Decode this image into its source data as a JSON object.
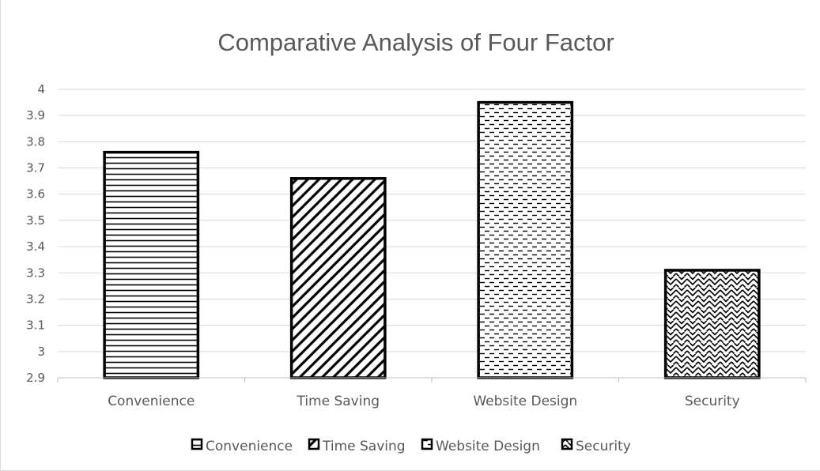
{
  "chart_data": {
    "type": "bar",
    "title": "Comparative Analysis of Four Factor",
    "categories": [
      "Convenience",
      "Time Saving",
      "Website Design",
      "Security"
    ],
    "values": [
      3.76,
      3.66,
      3.95,
      3.31
    ],
    "patterns": [
      "horizontal-lines",
      "diagonal-lines",
      "dashed-horizontal",
      "zigzag-weave"
    ],
    "ylim": [
      2.9,
      4.0
    ],
    "yticks": [
      "2.9",
      "3",
      "3.1",
      "3.2",
      "3.3",
      "3.4",
      "3.5",
      "3.6",
      "3.7",
      "3.8",
      "3.9",
      "4"
    ],
    "grid": true,
    "legend": {
      "position": "bottom",
      "entries": [
        "Convenience",
        "Time Saving",
        "Website Design",
        "Security"
      ]
    },
    "colors": {
      "bar_stroke": "#000000",
      "bar_fill": "#ffffff",
      "gridline": "#d9d9d9",
      "text": "#595959",
      "axis": "#bfbfbf"
    }
  }
}
